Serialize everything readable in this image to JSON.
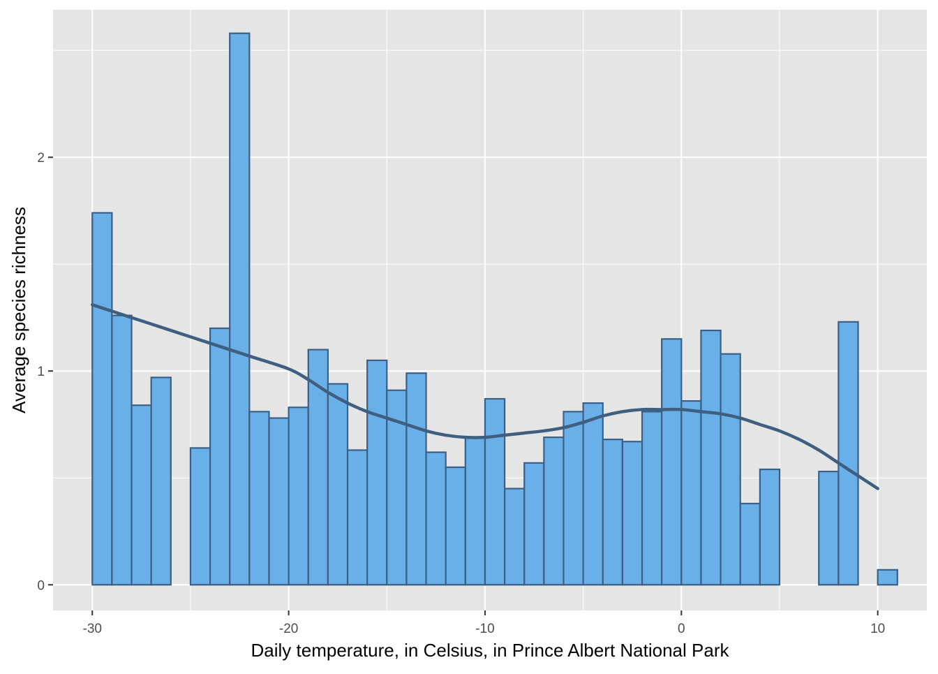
{
  "chart_data": {
    "type": "bar",
    "xlabel": "Daily temperature, in Celsius, in Prince Albert National Park",
    "ylabel": "Average species richness",
    "xlim": [
      -32,
      12.5
    ],
    "ylim": [
      -0.12,
      2.69
    ],
    "x_ticks": [
      -30,
      -20,
      -10,
      0,
      10
    ],
    "x_tick_labels": [
      "-30",
      "-20",
      "-10",
      "0",
      "10"
    ],
    "y_ticks": [
      0,
      1,
      2
    ],
    "y_tick_labels": [
      "0",
      "1",
      "2"
    ],
    "bin_width": 1,
    "bins": [
      {
        "x0": -30,
        "value": 1.74
      },
      {
        "x0": -29,
        "value": 1.26
      },
      {
        "x0": -28,
        "value": 0.84
      },
      {
        "x0": -27,
        "value": 0.97
      },
      {
        "x0": -25,
        "value": 0.64
      },
      {
        "x0": -24,
        "value": 1.2
      },
      {
        "x0": -23,
        "value": 2.58
      },
      {
        "x0": -22,
        "value": 0.81
      },
      {
        "x0": -21,
        "value": 0.78
      },
      {
        "x0": -20,
        "value": 0.83
      },
      {
        "x0": -19,
        "value": 1.1
      },
      {
        "x0": -18,
        "value": 0.94
      },
      {
        "x0": -17,
        "value": 0.63
      },
      {
        "x0": -16,
        "value": 1.05
      },
      {
        "x0": -15,
        "value": 0.91
      },
      {
        "x0": -14,
        "value": 0.99
      },
      {
        "x0": -13,
        "value": 0.62
      },
      {
        "x0": -12,
        "value": 0.55
      },
      {
        "x0": -11,
        "value": 0.69
      },
      {
        "x0": -10,
        "value": 0.87
      },
      {
        "x0": -9,
        "value": 0.45
      },
      {
        "x0": -8,
        "value": 0.57
      },
      {
        "x0": -7,
        "value": 0.69
      },
      {
        "x0": -6,
        "value": 0.81
      },
      {
        "x0": -5,
        "value": 0.85
      },
      {
        "x0": -4,
        "value": 0.68
      },
      {
        "x0": -3,
        "value": 0.67
      },
      {
        "x0": -2,
        "value": 0.81
      },
      {
        "x0": -1,
        "value": 1.15
      },
      {
        "x0": 0,
        "value": 0.86
      },
      {
        "x0": 1,
        "value": 1.19
      },
      {
        "x0": 2,
        "value": 1.08
      },
      {
        "x0": 3,
        "value": 0.38
      },
      {
        "x0": 4,
        "value": 0.54
      },
      {
        "x0": 7,
        "value": 0.53
      },
      {
        "x0": 8,
        "value": 1.23
      },
      {
        "x0": 10,
        "value": 0.07
      }
    ],
    "smooth_line": {
      "x": [
        -30,
        -28,
        -26,
        -24,
        -22,
        -20,
        -19,
        -18,
        -17,
        -16,
        -15,
        -14,
        -13,
        -12,
        -11,
        -10,
        -9,
        -8,
        -7,
        -6,
        -5,
        -4,
        -3,
        -2,
        -1,
        0,
        1,
        2,
        3,
        4,
        5,
        6,
        7,
        8,
        9,
        10
      ],
      "y": [
        1.31,
        1.25,
        1.19,
        1.13,
        1.07,
        1.01,
        0.96,
        0.9,
        0.85,
        0.81,
        0.78,
        0.75,
        0.72,
        0.7,
        0.69,
        0.69,
        0.7,
        0.71,
        0.72,
        0.735,
        0.76,
        0.79,
        0.81,
        0.82,
        0.82,
        0.82,
        0.81,
        0.8,
        0.78,
        0.75,
        0.72,
        0.68,
        0.63,
        0.57,
        0.51,
        0.45
      ]
    },
    "colors": {
      "panel_background": "#e5e5e5",
      "grid": "#ffffff",
      "bar_fill": "#6ab0e8",
      "bar_stroke": "#3b5f85",
      "line": "#3e5f80",
      "tick_text": "#4d4d4d",
      "axis_title": "#000000"
    },
    "grid": true,
    "legend": "none"
  }
}
